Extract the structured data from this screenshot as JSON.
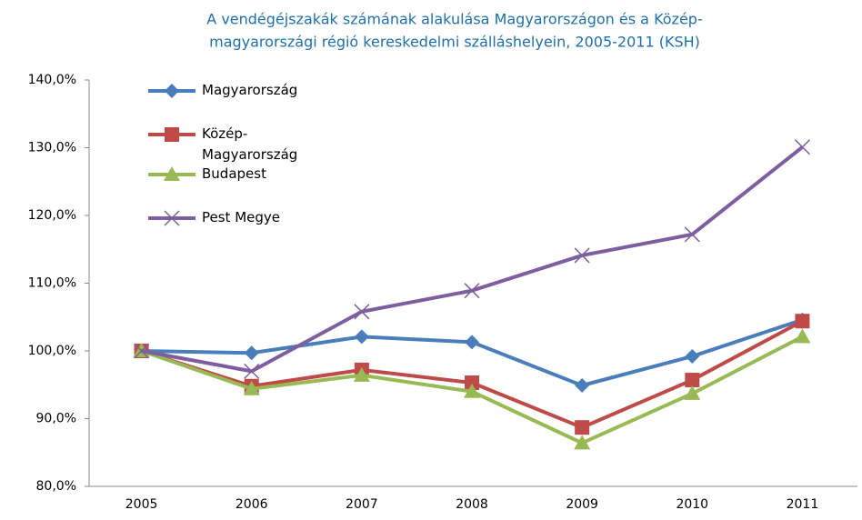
{
  "chart_data": {
    "type": "line",
    "title": [
      "A vendégéjszakák számának alakulása  Magyarországon és a Közép-",
      "magyarországi régió kereskedelmi szálláshelyein, 2005-2011 (KSH)"
    ],
    "categories": [
      "2005",
      "2006",
      "2007",
      "2008",
      "2009",
      "2010",
      "2011"
    ],
    "series": [
      {
        "name": "Magyarország",
        "color": "#4a7ebb",
        "marker": "diamond",
        "values": [
          100,
          99.7,
          102.1,
          101.3,
          94.9,
          99.2,
          104.6
        ]
      },
      {
        "name": "Közép-Magyarország",
        "color": "#be4b48",
        "marker": "square",
        "values": [
          100,
          94.8,
          97.2,
          95.3,
          88.7,
          95.7,
          104.4
        ]
      },
      {
        "name": "Budapest",
        "color": "#98b954",
        "marker": "triangle",
        "values": [
          100,
          94.4,
          96.4,
          94.0,
          86.4,
          93.7,
          102.1
        ]
      },
      {
        "name": "Pest Megye",
        "color": "#7d5fa0",
        "marker": "x",
        "values": [
          100,
          97.0,
          105.8,
          108.9,
          114.1,
          117.2,
          130.1
        ]
      }
    ],
    "ylim": [
      80,
      140
    ],
    "yticks": [
      {
        "value": 80,
        "label": "80,0%"
      },
      {
        "value": 90,
        "label": "90,0%"
      },
      {
        "value": 100,
        "label": "100,0%"
      },
      {
        "value": 110,
        "label": "110,0%"
      },
      {
        "value": 120,
        "label": "120,0%"
      },
      {
        "value": 130,
        "label": "130,0%"
      },
      {
        "value": 140,
        "label": "140,0%"
      }
    ],
    "legend": "top-left"
  }
}
